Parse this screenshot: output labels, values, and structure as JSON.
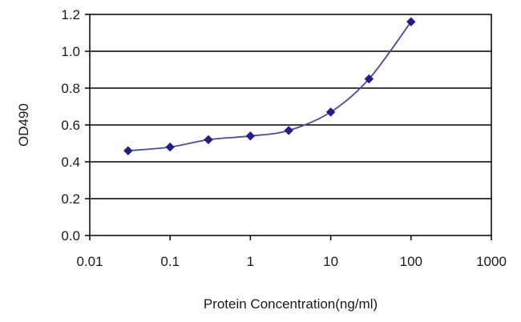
{
  "chart_data": {
    "type": "line",
    "title": "",
    "xlabel": "Protein Concentration(ng/ml)",
    "ylabel": "OD490",
    "x_scale": "log",
    "xlim": [
      0.01,
      1000
    ],
    "ylim": [
      0.0,
      1.2
    ],
    "x_ticks": [
      "0.01",
      "0.1",
      "1",
      "10",
      "100",
      "1000"
    ],
    "y_ticks": [
      "0.0",
      "0.2",
      "0.4",
      "0.6",
      "0.8",
      "1.0",
      "1.2"
    ],
    "grid": "horizontal",
    "legend": "none",
    "colors": {
      "line": "#4a4aa8",
      "marker": "#1e1e8c",
      "grid": "#000000",
      "plot_bg": "#ffffff"
    },
    "series": [
      {
        "x": [
          0.03,
          0.1,
          0.3,
          1,
          3,
          10,
          30,
          100
        ],
        "y": [
          0.46,
          0.48,
          0.52,
          0.54,
          0.57,
          0.67,
          0.85,
          1.16
        ]
      }
    ]
  }
}
